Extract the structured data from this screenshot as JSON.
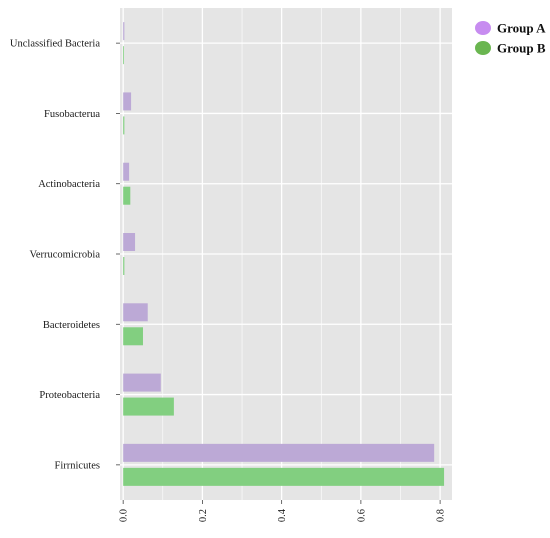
{
  "chart_data": {
    "type": "bar",
    "orientation": "horizontal",
    "categories": [
      "Unclassified Bacteria",
      "Fusobacterua",
      "Actinobacteria",
      "Verrucomicrobia",
      "Bacteroidetes",
      "Proteobacteria",
      "Firrnicutes"
    ],
    "series": [
      {
        "name": "Group A",
        "color": "#bca9d6",
        "values": [
          0.003,
          0.02,
          0.015,
          0.03,
          0.062,
          0.095,
          0.785
        ]
      },
      {
        "name": "Group B",
        "color": "#82cf80",
        "values": [
          0.002,
          0.003,
          0.018,
          0.003,
          0.05,
          0.128,
          0.81
        ]
      }
    ],
    "xlim": [
      -0.008,
      0.83
    ],
    "xticks": [
      0.0,
      0.2,
      0.4,
      0.6,
      0.8
    ],
    "xtick_labels": [
      "0.0",
      "0.2",
      "0.4",
      "0.6",
      "0.8"
    ],
    "grid": true,
    "legend_position": "top-right",
    "legend": [
      {
        "label": "Group A",
        "color": "#c78cf0"
      },
      {
        "label": "Group B",
        "color": "#6ab650"
      }
    ],
    "panel_background": "#e5e5e5",
    "gridline_color": "#ffffff"
  }
}
